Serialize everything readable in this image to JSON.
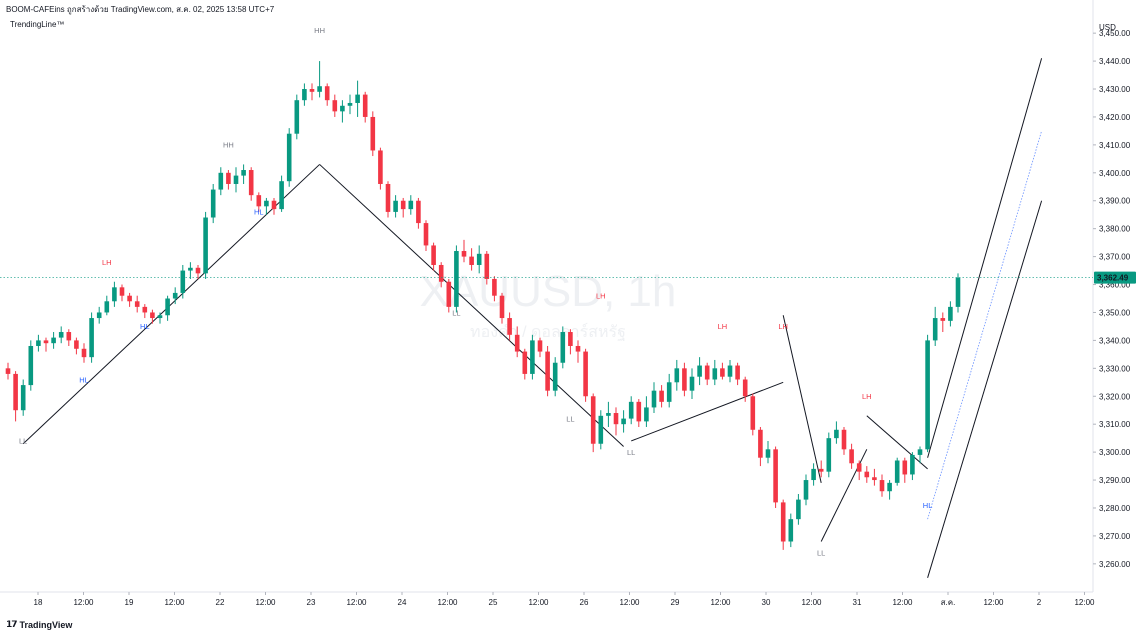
{
  "header": {
    "title": "BOOM-CAFEins ถูกสร้างด้วย TradingView.com, ส.ค. 02, 2025 13:58 UTC+7",
    "indicator": "TrendingLine™",
    "brand": "TradingView"
  },
  "colors": {
    "up": "#089981",
    "down": "#f23645",
    "trendline": "#131722",
    "lh_label": "#f23645",
    "hl_label": "#2962ff",
    "neutral_label": "#787b86",
    "price_line": "#089981",
    "midline": "#2962ff"
  },
  "chart_data": {
    "type": "candlestick",
    "symbol": "XAUUSD",
    "watermark_title": "XAUUSD, 1h",
    "watermark_subtitle": "ทองคำ / ดอลลาร์สหรัฐ",
    "currency": "USD",
    "y_ticks": [
      "3,260.00",
      "3,270.00",
      "3,280.00",
      "3,290.00",
      "3,300.00",
      "3,310.00",
      "3,320.00",
      "3,330.00",
      "3,340.00",
      "3,350.00",
      "3,360.00",
      "3,370.00",
      "3,380.00",
      "3,390.00",
      "3,400.00",
      "3,410.00",
      "3,420.00",
      "3,430.00",
      "3,440.00",
      "3,450.00"
    ],
    "y_range": [
      3253.5,
      3456.5
    ],
    "x_ticks": [
      "18",
      "12:00",
      "19",
      "12:00",
      "22",
      "12:00",
      "23",
      "12:00",
      "24",
      "12:00",
      "25",
      "12:00",
      "26",
      "12:00",
      "29",
      "12:00",
      "30",
      "12:00",
      "31",
      "12:00",
      "ส.ค.",
      "12:00",
      "2",
      "12:00"
    ],
    "last_price": 3362.49,
    "last_price_label": "3,362.49",
    "swing_labels": [
      {
        "text": "LL",
        "kind": "neutral",
        "x_index": 2,
        "price": 3303
      },
      {
        "text": "HL",
        "kind": "hl",
        "x_index": 10,
        "price": 3325
      },
      {
        "text": "LH",
        "kind": "lh",
        "x_index": 13,
        "price": 3367
      },
      {
        "text": "HL",
        "kind": "hl",
        "x_index": 18,
        "price": 3344
      },
      {
        "text": "HH",
        "kind": "neutral",
        "x_index": 29,
        "price": 3409
      },
      {
        "text": "HL",
        "kind": "hl",
        "x_index": 33,
        "price": 3385
      },
      {
        "text": "HH",
        "kind": "neutral",
        "x_index": 41,
        "price": 3450
      },
      {
        "text": "LL",
        "kind": "neutral",
        "x_index": 59,
        "price": 3349
      },
      {
        "text": "LL",
        "kind": "neutral",
        "x_index": 74,
        "price": 3311
      },
      {
        "text": "LH",
        "kind": "lh",
        "x_index": 78,
        "price": 3355
      },
      {
        "text": "LL",
        "kind": "neutral",
        "x_index": 82,
        "price": 3299
      },
      {
        "text": "LH",
        "kind": "lh",
        "x_index": 94,
        "price": 3344
      },
      {
        "text": "LH",
        "kind": "lh",
        "x_index": 102,
        "price": 3344
      },
      {
        "text": "LL",
        "kind": "neutral",
        "x_index": 107,
        "price": 3263
      },
      {
        "text": "LH",
        "kind": "lh",
        "x_index": 113,
        "price": 3319
      },
      {
        "text": "HL",
        "kind": "hl",
        "x_index": 121,
        "price": 3280
      }
    ],
    "trendlines": [
      {
        "from": {
          "x_index": 2,
          "price": 3303
        },
        "to": {
          "x_index": 41,
          "price": 3403
        }
      },
      {
        "from": {
          "x_index": 41,
          "price": 3403
        },
        "to": {
          "x_index": 81,
          "price": 3302
        }
      },
      {
        "from": {
          "x_index": 82,
          "price": 3304
        },
        "to": {
          "x_index": 102,
          "price": 3325
        }
      },
      {
        "from": {
          "x_index": 102,
          "price": 3349
        },
        "to": {
          "x_index": 107,
          "price": 3289
        }
      },
      {
        "from": {
          "x_index": 107,
          "price": 3268
        },
        "to": {
          "x_index": 113,
          "price": 3301
        }
      },
      {
        "from": {
          "x_index": 113,
          "price": 3313
        },
        "to": {
          "x_index": 121,
          "price": 3294
        }
      },
      {
        "from": {
          "x_index": 121,
          "price": 3298
        },
        "to": {
          "x_index": 136,
          "price": 3441
        }
      },
      {
        "from": {
          "x_index": 121,
          "price": 3255
        },
        "to": {
          "x_index": 136,
          "price": 3390
        }
      }
    ],
    "midline": {
      "from": {
        "x_index": 121,
        "price": 3276
      },
      "to": {
        "x_index": 136,
        "price": 3415
      }
    },
    "candles": [
      [
        3330,
        3332,
        3326,
        3328
      ],
      [
        3328,
        3329,
        3311,
        3315
      ],
      [
        3315,
        3326,
        3313,
        3324
      ],
      [
        3324,
        3340,
        3322,
        3338
      ],
      [
        3338,
        3342,
        3336,
        3340
      ],
      [
        3340,
        3341,
        3336,
        3339
      ],
      [
        3339,
        3343,
        3337,
        3341
      ],
      [
        3341,
        3345,
        3339,
        3343
      ],
      [
        3343,
        3344,
        3338,
        3340
      ],
      [
        3340,
        3341,
        3335,
        3337
      ],
      [
        3337,
        3339,
        3332,
        3334
      ],
      [
        3334,
        3350,
        3332,
        3348
      ],
      [
        3348,
        3352,
        3346,
        3350
      ],
      [
        3350,
        3356,
        3349,
        3354
      ],
      [
        3354,
        3361,
        3352,
        3359
      ],
      [
        3359,
        3360,
        3354,
        3356
      ],
      [
        3356,
        3357,
        3352,
        3354
      ],
      [
        3354,
        3356,
        3350,
        3352
      ],
      [
        3352,
        3353,
        3348,
        3350
      ],
      [
        3350,
        3351,
        3346,
        3348
      ],
      [
        3348,
        3350,
        3346,
        3349
      ],
      [
        3349,
        3356,
        3347,
        3355
      ],
      [
        3355,
        3359,
        3353,
        3357
      ],
      [
        3357,
        3367,
        3355,
        3365
      ],
      [
        3365,
        3368,
        3362,
        3366
      ],
      [
        3366,
        3367,
        3362,
        3364
      ],
      [
        3364,
        3386,
        3362,
        3384
      ],
      [
        3384,
        3396,
        3382,
        3394
      ],
      [
        3394,
        3402,
        3392,
        3400
      ],
      [
        3400,
        3401,
        3394,
        3396
      ],
      [
        3396,
        3402,
        3393,
        3399
      ],
      [
        3399,
        3403,
        3396,
        3401
      ],
      [
        3401,
        3402,
        3390,
        3392
      ],
      [
        3392,
        3393,
        3386,
        3388
      ],
      [
        3388,
        3391,
        3385,
        3390
      ],
      [
        3390,
        3391,
        3385,
        3387
      ],
      [
        3387,
        3399,
        3386,
        3397
      ],
      [
        3397,
        3416,
        3395,
        3414
      ],
      [
        3414,
        3428,
        3412,
        3426
      ],
      [
        3426,
        3432,
        3424,
        3430
      ],
      [
        3430,
        3432,
        3426,
        3429
      ],
      [
        3429,
        3440,
        3427,
        3431
      ],
      [
        3431,
        3432,
        3424,
        3426
      ],
      [
        3426,
        3428,
        3420,
        3422
      ],
      [
        3422,
        3426,
        3418,
        3424
      ],
      [
        3424,
        3428,
        3421,
        3425
      ],
      [
        3425,
        3433,
        3420,
        3428
      ],
      [
        3428,
        3429,
        3418,
        3420
      ],
      [
        3420,
        3422,
        3406,
        3408
      ],
      [
        3408,
        3409,
        3394,
        3396
      ],
      [
        3396,
        3397,
        3384,
        3386
      ],
      [
        3386,
        3392,
        3384,
        3390
      ],
      [
        3390,
        3391,
        3384,
        3387
      ],
      [
        3387,
        3392,
        3385,
        3390
      ],
      [
        3390,
        3391,
        3380,
        3382
      ],
      [
        3382,
        3383,
        3372,
        3374
      ],
      [
        3374,
        3375,
        3365,
        3367
      ],
      [
        3367,
        3368,
        3359,
        3361
      ],
      [
        3361,
        3362,
        3350,
        3352
      ],
      [
        3352,
        3374,
        3350,
        3372
      ],
      [
        3372,
        3376,
        3368,
        3370
      ],
      [
        3370,
        3373,
        3365,
        3367
      ],
      [
        3367,
        3374,
        3364,
        3371
      ],
      [
        3371,
        3372,
        3360,
        3362
      ],
      [
        3362,
        3363,
        3354,
        3356
      ],
      [
        3356,
        3357,
        3346,
        3348
      ],
      [
        3348,
        3350,
        3340,
        3342
      ],
      [
        3342,
        3345,
        3334,
        3336
      ],
      [
        3336,
        3337,
        3326,
        3328
      ],
      [
        3328,
        3342,
        3326,
        3340
      ],
      [
        3340,
        3341,
        3334,
        3336
      ],
      [
        3336,
        3338,
        3320,
        3322
      ],
      [
        3322,
        3334,
        3320,
        3332
      ],
      [
        3332,
        3345,
        3330,
        3343
      ],
      [
        3343,
        3344,
        3335,
        3338
      ],
      [
        3338,
        3340,
        3332,
        3336
      ],
      [
        3336,
        3337,
        3318,
        3320
      ],
      [
        3320,
        3321,
        3300,
        3303
      ],
      [
        3303,
        3315,
        3301,
        3313
      ],
      [
        3313,
        3318,
        3309,
        3314
      ],
      [
        3314,
        3316,
        3306,
        3310
      ],
      [
        3310,
        3315,
        3307,
        3312
      ],
      [
        3312,
        3320,
        3310,
        3318
      ],
      [
        3318,
        3319,
        3309,
        3311
      ],
      [
        3311,
        3320,
        3309,
        3316
      ],
      [
        3316,
        3325,
        3314,
        3322
      ],
      [
        3322,
        3324,
        3316,
        3318
      ],
      [
        3318,
        3328,
        3316,
        3325
      ],
      [
        3325,
        3333,
        3322,
        3330
      ],
      [
        3330,
        3332,
        3320,
        3322
      ],
      [
        3322,
        3330,
        3319,
        3327
      ],
      [
        3327,
        3334,
        3324,
        3331
      ],
      [
        3331,
        3332,
        3324,
        3326
      ],
      [
        3326,
        3333,
        3324,
        3330
      ],
      [
        3330,
        3332,
        3326,
        3327
      ],
      [
        3327,
        3333,
        3325,
        3331
      ],
      [
        3331,
        3332,
        3324,
        3326
      ],
      [
        3326,
        3327,
        3318,
        3320
      ],
      [
        3320,
        3321,
        3306,
        3308
      ],
      [
        3308,
        3309,
        3295,
        3298
      ],
      [
        3298,
        3304,
        3296,
        3301
      ],
      [
        3301,
        3302,
        3280,
        3282
      ],
      [
        3282,
        3283,
        3265,
        3268
      ],
      [
        3268,
        3278,
        3266,
        3276
      ],
      [
        3276,
        3285,
        3274,
        3283
      ],
      [
        3283,
        3292,
        3281,
        3290
      ],
      [
        3290,
        3296,
        3288,
        3294
      ],
      [
        3294,
        3297,
        3291,
        3293
      ],
      [
        3293,
        3307,
        3291,
        3305
      ],
      [
        3305,
        3311,
        3303,
        3308
      ],
      [
        3308,
        3309,
        3299,
        3301
      ],
      [
        3301,
        3303,
        3294,
        3296
      ],
      [
        3296,
        3297,
        3290,
        3293
      ],
      [
        3293,
        3295,
        3289,
        3291
      ],
      [
        3291,
        3294,
        3288,
        3290
      ],
      [
        3290,
        3292,
        3284,
        3286
      ],
      [
        3286,
        3290,
        3283,
        3289
      ],
      [
        3289,
        3298,
        3288,
        3297
      ],
      [
        3297,
        3298,
        3289,
        3292
      ],
      [
        3292,
        3300,
        3290,
        3299
      ],
      [
        3299,
        3302,
        3296,
        3301
      ],
      [
        3301,
        3342,
        3300,
        3340
      ],
      [
        3340,
        3352,
        3338,
        3348
      ],
      [
        3348,
        3350,
        3343,
        3347
      ],
      [
        3347,
        3354,
        3345,
        3352
      ],
      [
        3352,
        3364,
        3350,
        3362.49
      ]
    ]
  }
}
